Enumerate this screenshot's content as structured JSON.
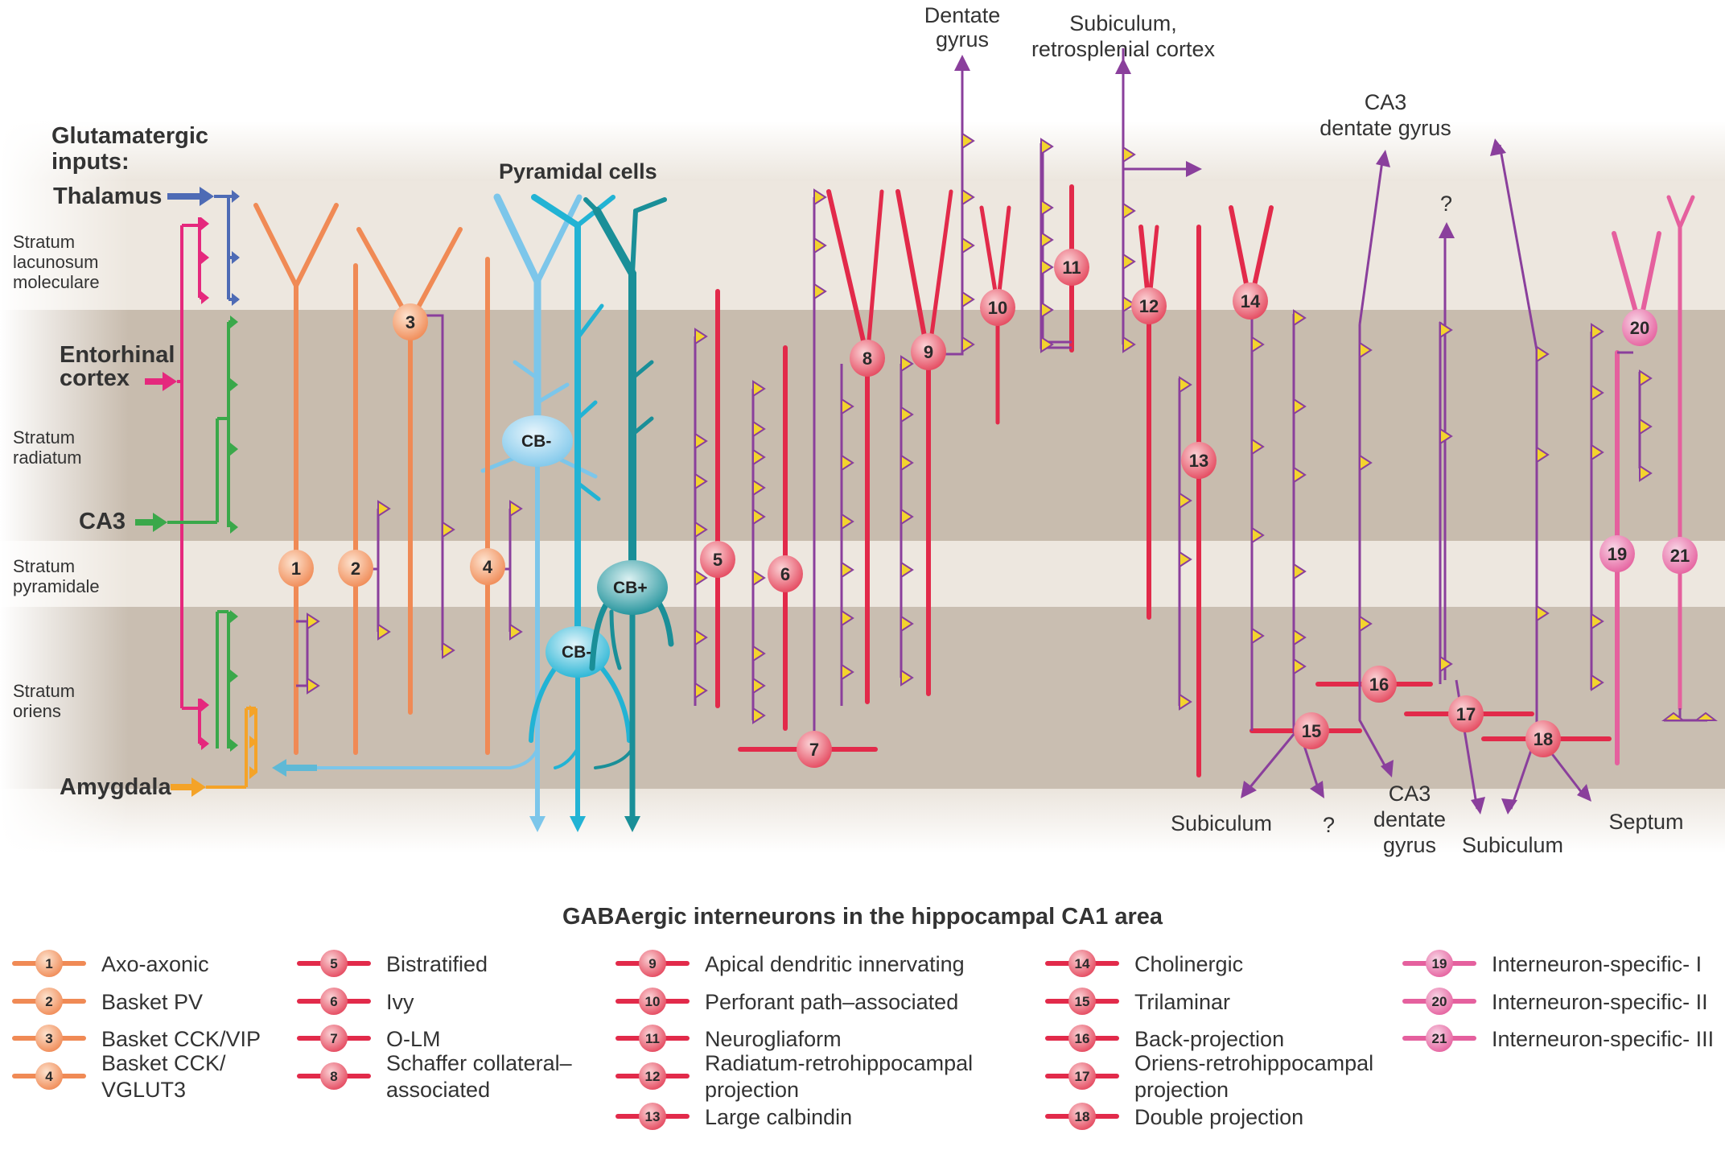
{
  "inputs": {
    "heading": [
      "Glutamatergic",
      "inputs:"
    ],
    "thalamus": "Thalamus",
    "entorhinal": [
      "Entorhinal",
      "cortex"
    ],
    "ca3": "CA3",
    "amygdala": "Amygdala"
  },
  "layers": {
    "lacunosum": [
      "Stratum",
      "lacunosum",
      "moleculare"
    ],
    "radiatum": [
      "Stratum",
      "radiatum"
    ],
    "pyramidale": [
      "Stratum",
      "pyramidale"
    ],
    "oriens": [
      "Stratum",
      "oriens"
    ]
  },
  "pyramidal": {
    "title": "Pyramidal cells",
    "cb_minus_top": "CB-",
    "cb_minus_bottom": "CB-",
    "cb_plus": "CB+"
  },
  "targets": {
    "dentate": [
      "Dentate",
      "gyrus"
    ],
    "subiculum_retro": [
      "Subiculum,",
      "retrosplenial cortex"
    ],
    "ca3_dg_top": [
      "CA3",
      "dentate gyrus"
    ],
    "question_top": "?",
    "subiculum_15": "Subiculum",
    "question_15": "?",
    "ca3_dg_bottom": [
      "CA3",
      "dentate",
      "gyrus"
    ],
    "subiculum_17": "Subiculum",
    "septum": "Septum"
  },
  "nodes": [
    "1",
    "2",
    "3",
    "4",
    "5",
    "6",
    "7",
    "8",
    "9",
    "10",
    "11",
    "12",
    "13",
    "14",
    "15",
    "16",
    "17",
    "18",
    "19",
    "20",
    "21"
  ],
  "legend": {
    "title": "GABAergic interneurons in the hippocampal CA1 area",
    "items": [
      {
        "num": "1",
        "label": [
          "Axo-axonic"
        ]
      },
      {
        "num": "2",
        "label": [
          "Basket PV"
        ]
      },
      {
        "num": "3",
        "label": [
          "Basket CCK/VIP"
        ]
      },
      {
        "num": "4",
        "label": [
          "Basket CCK/",
          "VGLUT3"
        ]
      },
      {
        "num": "5",
        "label": [
          "Bistratified"
        ]
      },
      {
        "num": "6",
        "label": [
          "Ivy"
        ]
      },
      {
        "num": "7",
        "label": [
          "O-LM"
        ]
      },
      {
        "num": "8",
        "label": [
          "Schaffer collateral–",
          "associated"
        ]
      },
      {
        "num": "9",
        "label": [
          "Apical dendritic innervating"
        ]
      },
      {
        "num": "10",
        "label": [
          "Perforant path–associated"
        ]
      },
      {
        "num": "11",
        "label": [
          "Neurogliaform"
        ]
      },
      {
        "num": "12",
        "label": [
          "Radiatum-retrohippocampal",
          "projection"
        ]
      },
      {
        "num": "13",
        "label": [
          "Large calbindin"
        ]
      },
      {
        "num": "14",
        "label": [
          "Cholinergic"
        ]
      },
      {
        "num": "15",
        "label": [
          "Trilaminar"
        ]
      },
      {
        "num": "16",
        "label": [
          "Back-projection"
        ]
      },
      {
        "num": "17",
        "label": [
          "Oriens-retrohippocampal",
          "projection"
        ]
      },
      {
        "num": "18",
        "label": [
          "Double projection"
        ]
      },
      {
        "num": "19",
        "label": [
          "Interneuron-specific- I"
        ]
      },
      {
        "num": "20",
        "label": [
          "Interneuron-specific- II"
        ]
      },
      {
        "num": "21",
        "label": [
          "Interneuron-specific- III"
        ]
      }
    ]
  },
  "colors": {
    "thalamus": "#4e6bb5",
    "entorhinal": "#e5287d",
    "ca3": "#3aa84a",
    "amygdala": "#f4a328",
    "basket": "#f08a55",
    "red": "#e22a4a",
    "purple": "#8a3f9c",
    "pink": "#e5609e",
    "pyr_light": "#7cc6ea",
    "pyr_mid": "#22b3d4",
    "pyr_dark": "#1a8f98",
    "synapse": "#f3d42e"
  }
}
